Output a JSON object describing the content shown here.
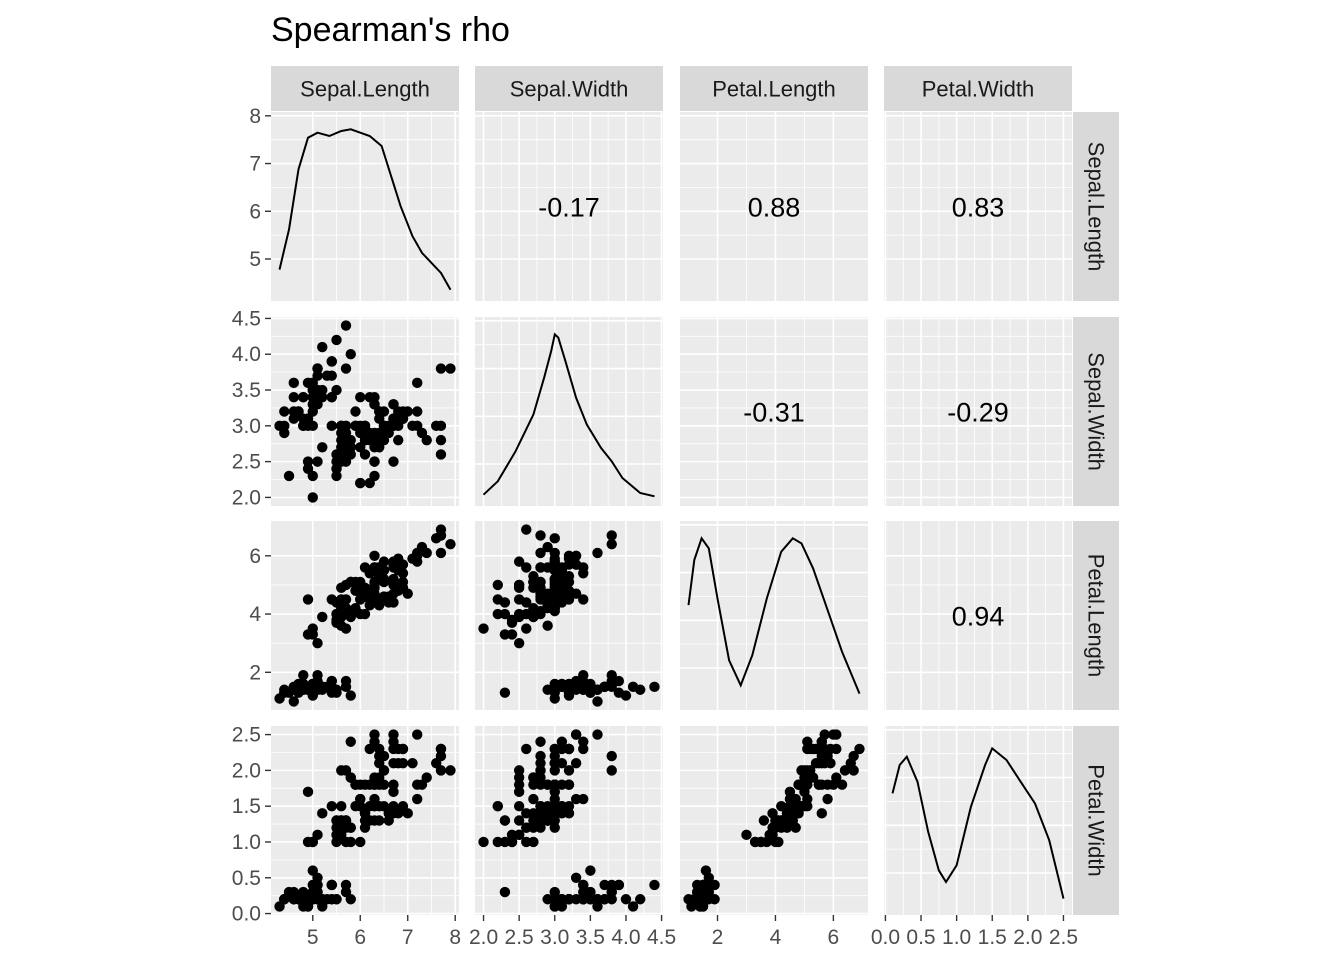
{
  "title": "Spearman's rho",
  "chart_data": {
    "type": "scatter",
    "title": "Spearman's rho",
    "variables": [
      "Sepal.Length",
      "Sepal.Width",
      "Petal.Length",
      "Petal.Width"
    ],
    "axis_ranges": {
      "Sepal.Length": [
        4.12,
        8.08
      ],
      "Sepal.Width": [
        1.88,
        4.52
      ],
      "Petal.Length": [
        0.705,
        7.195
      ],
      "Petal.Width": [
        -0.02,
        2.62
      ]
    },
    "ticks": {
      "Sepal.Length": {
        "values": [
          5,
          6,
          7,
          8
        ],
        "labels": [
          "5",
          "6",
          "7",
          "8"
        ]
      },
      "Sepal.Width": {
        "values": [
          2.0,
          2.5,
          3.0,
          3.5,
          4.0,
          4.5
        ],
        "labels": [
          "2.0",
          "2.5",
          "3.0",
          "3.5",
          "4.0",
          "4.5"
        ]
      },
      "Petal.Length": {
        "values": [
          2,
          4,
          6
        ],
        "labels": [
          "2",
          "4",
          "6"
        ]
      },
      "Petal.Width": {
        "values": [
          0.0,
          0.5,
          1.0,
          1.5,
          2.0,
          2.5
        ],
        "labels": [
          "0.0",
          "0.5",
          "1.0",
          "1.5",
          "2.0",
          "2.5"
        ]
      }
    },
    "correlations": [
      {
        "row": "Sepal.Length",
        "col": "Sepal.Width",
        "value": "-0.17"
      },
      {
        "row": "Sepal.Length",
        "col": "Petal.Length",
        "value": "0.88"
      },
      {
        "row": "Sepal.Length",
        "col": "Petal.Width",
        "value": "0.83"
      },
      {
        "row": "Sepal.Width",
        "col": "Petal.Length",
        "value": "-0.31"
      },
      {
        "row": "Sepal.Width",
        "col": "Petal.Width",
        "value": "-0.29"
      },
      {
        "row": "Petal.Length",
        "col": "Petal.Width",
        "value": "0.94"
      }
    ],
    "densities": {
      "Sepal.Length": [
        [
          4.3,
          0.14
        ],
        [
          4.5,
          0.38
        ],
        [
          4.7,
          0.74
        ],
        [
          4.9,
          0.93
        ],
        [
          5.1,
          0.96
        ],
        [
          5.35,
          0.94
        ],
        [
          5.6,
          0.97
        ],
        [
          5.8,
          0.98
        ],
        [
          6.0,
          0.96
        ],
        [
          6.2,
          0.94
        ],
        [
          6.45,
          0.88
        ],
        [
          6.65,
          0.7
        ],
        [
          6.85,
          0.52
        ],
        [
          7.1,
          0.34
        ],
        [
          7.3,
          0.24
        ],
        [
          7.5,
          0.18
        ],
        [
          7.7,
          0.12
        ],
        [
          7.9,
          0.02
        ]
      ],
      "Sepal.Width": [
        [
          2.0,
          0.02
        ],
        [
          2.2,
          0.1
        ],
        [
          2.45,
          0.28
        ],
        [
          2.7,
          0.5
        ],
        [
          2.85,
          0.72
        ],
        [
          2.95,
          0.88
        ],
        [
          3.0,
          0.98
        ],
        [
          3.05,
          0.96
        ],
        [
          3.15,
          0.82
        ],
        [
          3.3,
          0.6
        ],
        [
          3.45,
          0.44
        ],
        [
          3.65,
          0.3
        ],
        [
          3.8,
          0.22
        ],
        [
          3.95,
          0.12
        ],
        [
          4.2,
          0.03
        ],
        [
          4.4,
          0.01
        ]
      ],
      "Petal.Length": [
        [
          1.0,
          0.58
        ],
        [
          1.2,
          0.85
        ],
        [
          1.45,
          0.98
        ],
        [
          1.7,
          0.92
        ],
        [
          2.0,
          0.62
        ],
        [
          2.4,
          0.25
        ],
        [
          2.8,
          0.1
        ],
        [
          3.2,
          0.28
        ],
        [
          3.7,
          0.62
        ],
        [
          4.2,
          0.9
        ],
        [
          4.6,
          0.98
        ],
        [
          4.9,
          0.95
        ],
        [
          5.3,
          0.8
        ],
        [
          5.8,
          0.55
        ],
        [
          6.3,
          0.3
        ],
        [
          6.9,
          0.05
        ]
      ],
      "Petal.Width": [
        [
          0.1,
          0.68
        ],
        [
          0.2,
          0.85
        ],
        [
          0.3,
          0.9
        ],
        [
          0.45,
          0.75
        ],
        [
          0.6,
          0.45
        ],
        [
          0.75,
          0.22
        ],
        [
          0.85,
          0.15
        ],
        [
          1.0,
          0.25
        ],
        [
          1.2,
          0.6
        ],
        [
          1.4,
          0.85
        ],
        [
          1.5,
          0.95
        ],
        [
          1.7,
          0.88
        ],
        [
          1.9,
          0.75
        ],
        [
          2.1,
          0.62
        ],
        [
          2.3,
          0.4
        ],
        [
          2.5,
          0.05
        ]
      ]
    },
    "observations": [
      [
        5.1,
        3.5,
        1.4,
        0.2
      ],
      [
        4.9,
        3.0,
        1.4,
        0.2
      ],
      [
        4.7,
        3.2,
        1.3,
        0.2
      ],
      [
        4.6,
        3.1,
        1.5,
        0.2
      ],
      [
        5.0,
        3.6,
        1.4,
        0.2
      ],
      [
        5.4,
        3.9,
        1.7,
        0.4
      ],
      [
        4.6,
        3.4,
        1.4,
        0.3
      ],
      [
        5.0,
        3.4,
        1.5,
        0.2
      ],
      [
        4.4,
        2.9,
        1.4,
        0.2
      ],
      [
        4.9,
        3.1,
        1.5,
        0.1
      ],
      [
        5.4,
        3.7,
        1.5,
        0.2
      ],
      [
        4.8,
        3.4,
        1.6,
        0.2
      ],
      [
        4.8,
        3.0,
        1.4,
        0.1
      ],
      [
        4.3,
        3.0,
        1.1,
        0.1
      ],
      [
        5.8,
        4.0,
        1.2,
        0.2
      ],
      [
        5.7,
        4.4,
        1.5,
        0.4
      ],
      [
        5.4,
        3.9,
        1.3,
        0.4
      ],
      [
        5.1,
        3.5,
        1.4,
        0.3
      ],
      [
        5.7,
        3.8,
        1.7,
        0.3
      ],
      [
        5.1,
        3.8,
        1.5,
        0.3
      ],
      [
        5.4,
        3.4,
        1.7,
        0.2
      ],
      [
        5.1,
        3.7,
        1.5,
        0.4
      ],
      [
        4.6,
        3.6,
        1.0,
        0.2
      ],
      [
        5.1,
        3.3,
        1.7,
        0.5
      ],
      [
        4.8,
        3.4,
        1.9,
        0.2
      ],
      [
        5.0,
        3.0,
        1.6,
        0.2
      ],
      [
        5.0,
        3.4,
        1.6,
        0.4
      ],
      [
        5.2,
        3.5,
        1.5,
        0.2
      ],
      [
        5.2,
        3.4,
        1.4,
        0.2
      ],
      [
        4.7,
        3.2,
        1.6,
        0.2
      ],
      [
        4.8,
        3.1,
        1.6,
        0.2
      ],
      [
        5.4,
        3.4,
        1.5,
        0.4
      ],
      [
        5.2,
        4.1,
        1.5,
        0.1
      ],
      [
        5.5,
        4.2,
        1.4,
        0.2
      ],
      [
        4.9,
        3.1,
        1.5,
        0.2
      ],
      [
        5.0,
        3.2,
        1.2,
        0.2
      ],
      [
        5.5,
        3.5,
        1.3,
        0.2
      ],
      [
        4.9,
        3.6,
        1.4,
        0.1
      ],
      [
        4.4,
        3.0,
        1.3,
        0.2
      ],
      [
        5.1,
        3.4,
        1.5,
        0.2
      ],
      [
        5.0,
        3.5,
        1.3,
        0.3
      ],
      [
        4.5,
        2.3,
        1.3,
        0.3
      ],
      [
        4.4,
        3.2,
        1.3,
        0.2
      ],
      [
        5.0,
        3.5,
        1.6,
        0.6
      ],
      [
        5.1,
        3.8,
        1.9,
        0.4
      ],
      [
        4.8,
        3.0,
        1.4,
        0.3
      ],
      [
        5.1,
        3.8,
        1.6,
        0.2
      ],
      [
        4.6,
        3.2,
        1.4,
        0.2
      ],
      [
        5.3,
        3.7,
        1.5,
        0.2
      ],
      [
        5.0,
        3.3,
        1.4,
        0.2
      ],
      [
        7.0,
        3.2,
        4.7,
        1.4
      ],
      [
        6.4,
        3.2,
        4.5,
        1.5
      ],
      [
        6.9,
        3.1,
        4.9,
        1.5
      ],
      [
        5.5,
        2.3,
        4.0,
        1.3
      ],
      [
        6.5,
        2.8,
        4.6,
        1.5
      ],
      [
        5.7,
        2.8,
        4.5,
        1.3
      ],
      [
        6.3,
        3.3,
        4.7,
        1.6
      ],
      [
        4.9,
        2.4,
        3.3,
        1.0
      ],
      [
        6.6,
        2.9,
        4.6,
        1.3
      ],
      [
        5.2,
        2.7,
        3.9,
        1.4
      ],
      [
        5.0,
        2.0,
        3.5,
        1.0
      ],
      [
        5.9,
        3.0,
        4.2,
        1.5
      ],
      [
        6.0,
        2.2,
        4.0,
        1.0
      ],
      [
        6.1,
        2.9,
        4.7,
        1.4
      ],
      [
        5.6,
        2.9,
        3.6,
        1.3
      ],
      [
        6.7,
        3.1,
        4.4,
        1.4
      ],
      [
        5.6,
        3.0,
        4.5,
        1.5
      ],
      [
        5.8,
        2.7,
        4.1,
        1.0
      ],
      [
        6.2,
        2.2,
        4.5,
        1.5
      ],
      [
        5.6,
        2.5,
        3.9,
        1.1
      ],
      [
        5.9,
        3.2,
        4.8,
        1.8
      ],
      [
        6.1,
        2.8,
        4.0,
        1.3
      ],
      [
        6.3,
        2.5,
        4.9,
        1.5
      ],
      [
        6.1,
        2.8,
        4.7,
        1.2
      ],
      [
        6.4,
        2.9,
        4.3,
        1.3
      ],
      [
        6.6,
        3.0,
        4.4,
        1.4
      ],
      [
        6.8,
        2.8,
        4.8,
        1.4
      ],
      [
        6.7,
        3.0,
        5.0,
        1.7
      ],
      [
        6.0,
        2.9,
        4.5,
        1.5
      ],
      [
        5.7,
        2.6,
        3.5,
        1.0
      ],
      [
        5.5,
        2.4,
        3.8,
        1.1
      ],
      [
        5.5,
        2.4,
        3.7,
        1.0
      ],
      [
        5.8,
        2.7,
        3.9,
        1.2
      ],
      [
        6.0,
        2.7,
        5.1,
        1.6
      ],
      [
        5.4,
        3.0,
        4.5,
        1.5
      ],
      [
        6.0,
        3.4,
        4.5,
        1.6
      ],
      [
        6.7,
        3.1,
        4.7,
        1.5
      ],
      [
        6.3,
        2.3,
        4.4,
        1.3
      ],
      [
        5.6,
        3.0,
        4.1,
        1.3
      ],
      [
        5.5,
        2.5,
        4.0,
        1.3
      ],
      [
        5.5,
        2.6,
        4.4,
        1.2
      ],
      [
        6.1,
        3.0,
        4.6,
        1.4
      ],
      [
        5.8,
        2.6,
        4.0,
        1.2
      ],
      [
        5.0,
        2.3,
        3.3,
        1.0
      ],
      [
        5.6,
        2.7,
        4.2,
        1.3
      ],
      [
        5.7,
        3.0,
        4.2,
        1.2
      ],
      [
        5.7,
        2.9,
        4.2,
        1.3
      ],
      [
        6.2,
        2.9,
        4.3,
        1.3
      ],
      [
        5.1,
        2.5,
        3.0,
        1.1
      ],
      [
        5.7,
        2.8,
        4.1,
        1.3
      ],
      [
        6.3,
        3.3,
        6.0,
        2.5
      ],
      [
        5.8,
        2.7,
        5.1,
        1.9
      ],
      [
        7.1,
        3.0,
        5.9,
        2.1
      ],
      [
        6.3,
        2.9,
        5.6,
        1.8
      ],
      [
        6.5,
        3.0,
        5.8,
        2.2
      ],
      [
        7.6,
        3.0,
        6.6,
        2.1
      ],
      [
        4.9,
        2.5,
        4.5,
        1.7
      ],
      [
        7.3,
        2.9,
        6.3,
        1.8
      ],
      [
        6.7,
        2.5,
        5.8,
        1.8
      ],
      [
        7.2,
        3.6,
        6.1,
        2.5
      ],
      [
        6.5,
        3.2,
        5.1,
        2.0
      ],
      [
        6.4,
        2.7,
        5.3,
        1.9
      ],
      [
        6.8,
        3.0,
        5.5,
        2.1
      ],
      [
        5.7,
        2.5,
        5.0,
        2.0
      ],
      [
        5.8,
        2.8,
        5.1,
        2.4
      ],
      [
        6.4,
        3.2,
        5.3,
        2.3
      ],
      [
        6.5,
        3.0,
        5.5,
        1.8
      ],
      [
        7.7,
        3.8,
        6.7,
        2.2
      ],
      [
        7.7,
        2.6,
        6.9,
        2.3
      ],
      [
        6.0,
        2.2,
        5.0,
        1.5
      ],
      [
        6.9,
        3.2,
        5.7,
        2.3
      ],
      [
        5.6,
        2.8,
        4.9,
        2.0
      ],
      [
        7.7,
        2.8,
        6.7,
        2.0
      ],
      [
        6.3,
        2.7,
        4.9,
        1.8
      ],
      [
        6.7,
        3.3,
        5.7,
        2.1
      ],
      [
        7.2,
        3.2,
        6.0,
        1.8
      ],
      [
        6.2,
        2.8,
        4.8,
        1.8
      ],
      [
        6.1,
        3.0,
        4.9,
        1.8
      ],
      [
        6.4,
        2.8,
        5.6,
        2.1
      ],
      [
        7.2,
        3.0,
        5.8,
        1.6
      ],
      [
        7.4,
        2.8,
        6.1,
        1.9
      ],
      [
        7.9,
        3.8,
        6.4,
        2.0
      ],
      [
        6.4,
        2.8,
        5.6,
        2.2
      ],
      [
        6.3,
        2.8,
        5.1,
        1.5
      ],
      [
        6.1,
        2.6,
        5.6,
        1.4
      ],
      [
        7.7,
        3.0,
        6.1,
        2.3
      ],
      [
        6.3,
        3.4,
        5.6,
        2.4
      ],
      [
        6.4,
        3.1,
        5.5,
        1.8
      ],
      [
        6.0,
        3.0,
        4.8,
        1.8
      ],
      [
        6.9,
        3.1,
        5.4,
        2.1
      ],
      [
        6.7,
        3.1,
        5.6,
        2.4
      ],
      [
        6.9,
        3.1,
        5.1,
        2.3
      ],
      [
        5.8,
        2.7,
        5.1,
        1.9
      ],
      [
        6.8,
        3.2,
        5.9,
        2.3
      ],
      [
        6.7,
        3.3,
        5.7,
        2.5
      ],
      [
        6.7,
        3.0,
        5.2,
        2.3
      ],
      [
        6.3,
        2.5,
        5.0,
        1.9
      ],
      [
        6.5,
        3.0,
        5.2,
        2.0
      ],
      [
        6.2,
        3.4,
        5.4,
        2.3
      ],
      [
        5.9,
        3.0,
        5.1,
        1.8
      ]
    ]
  }
}
